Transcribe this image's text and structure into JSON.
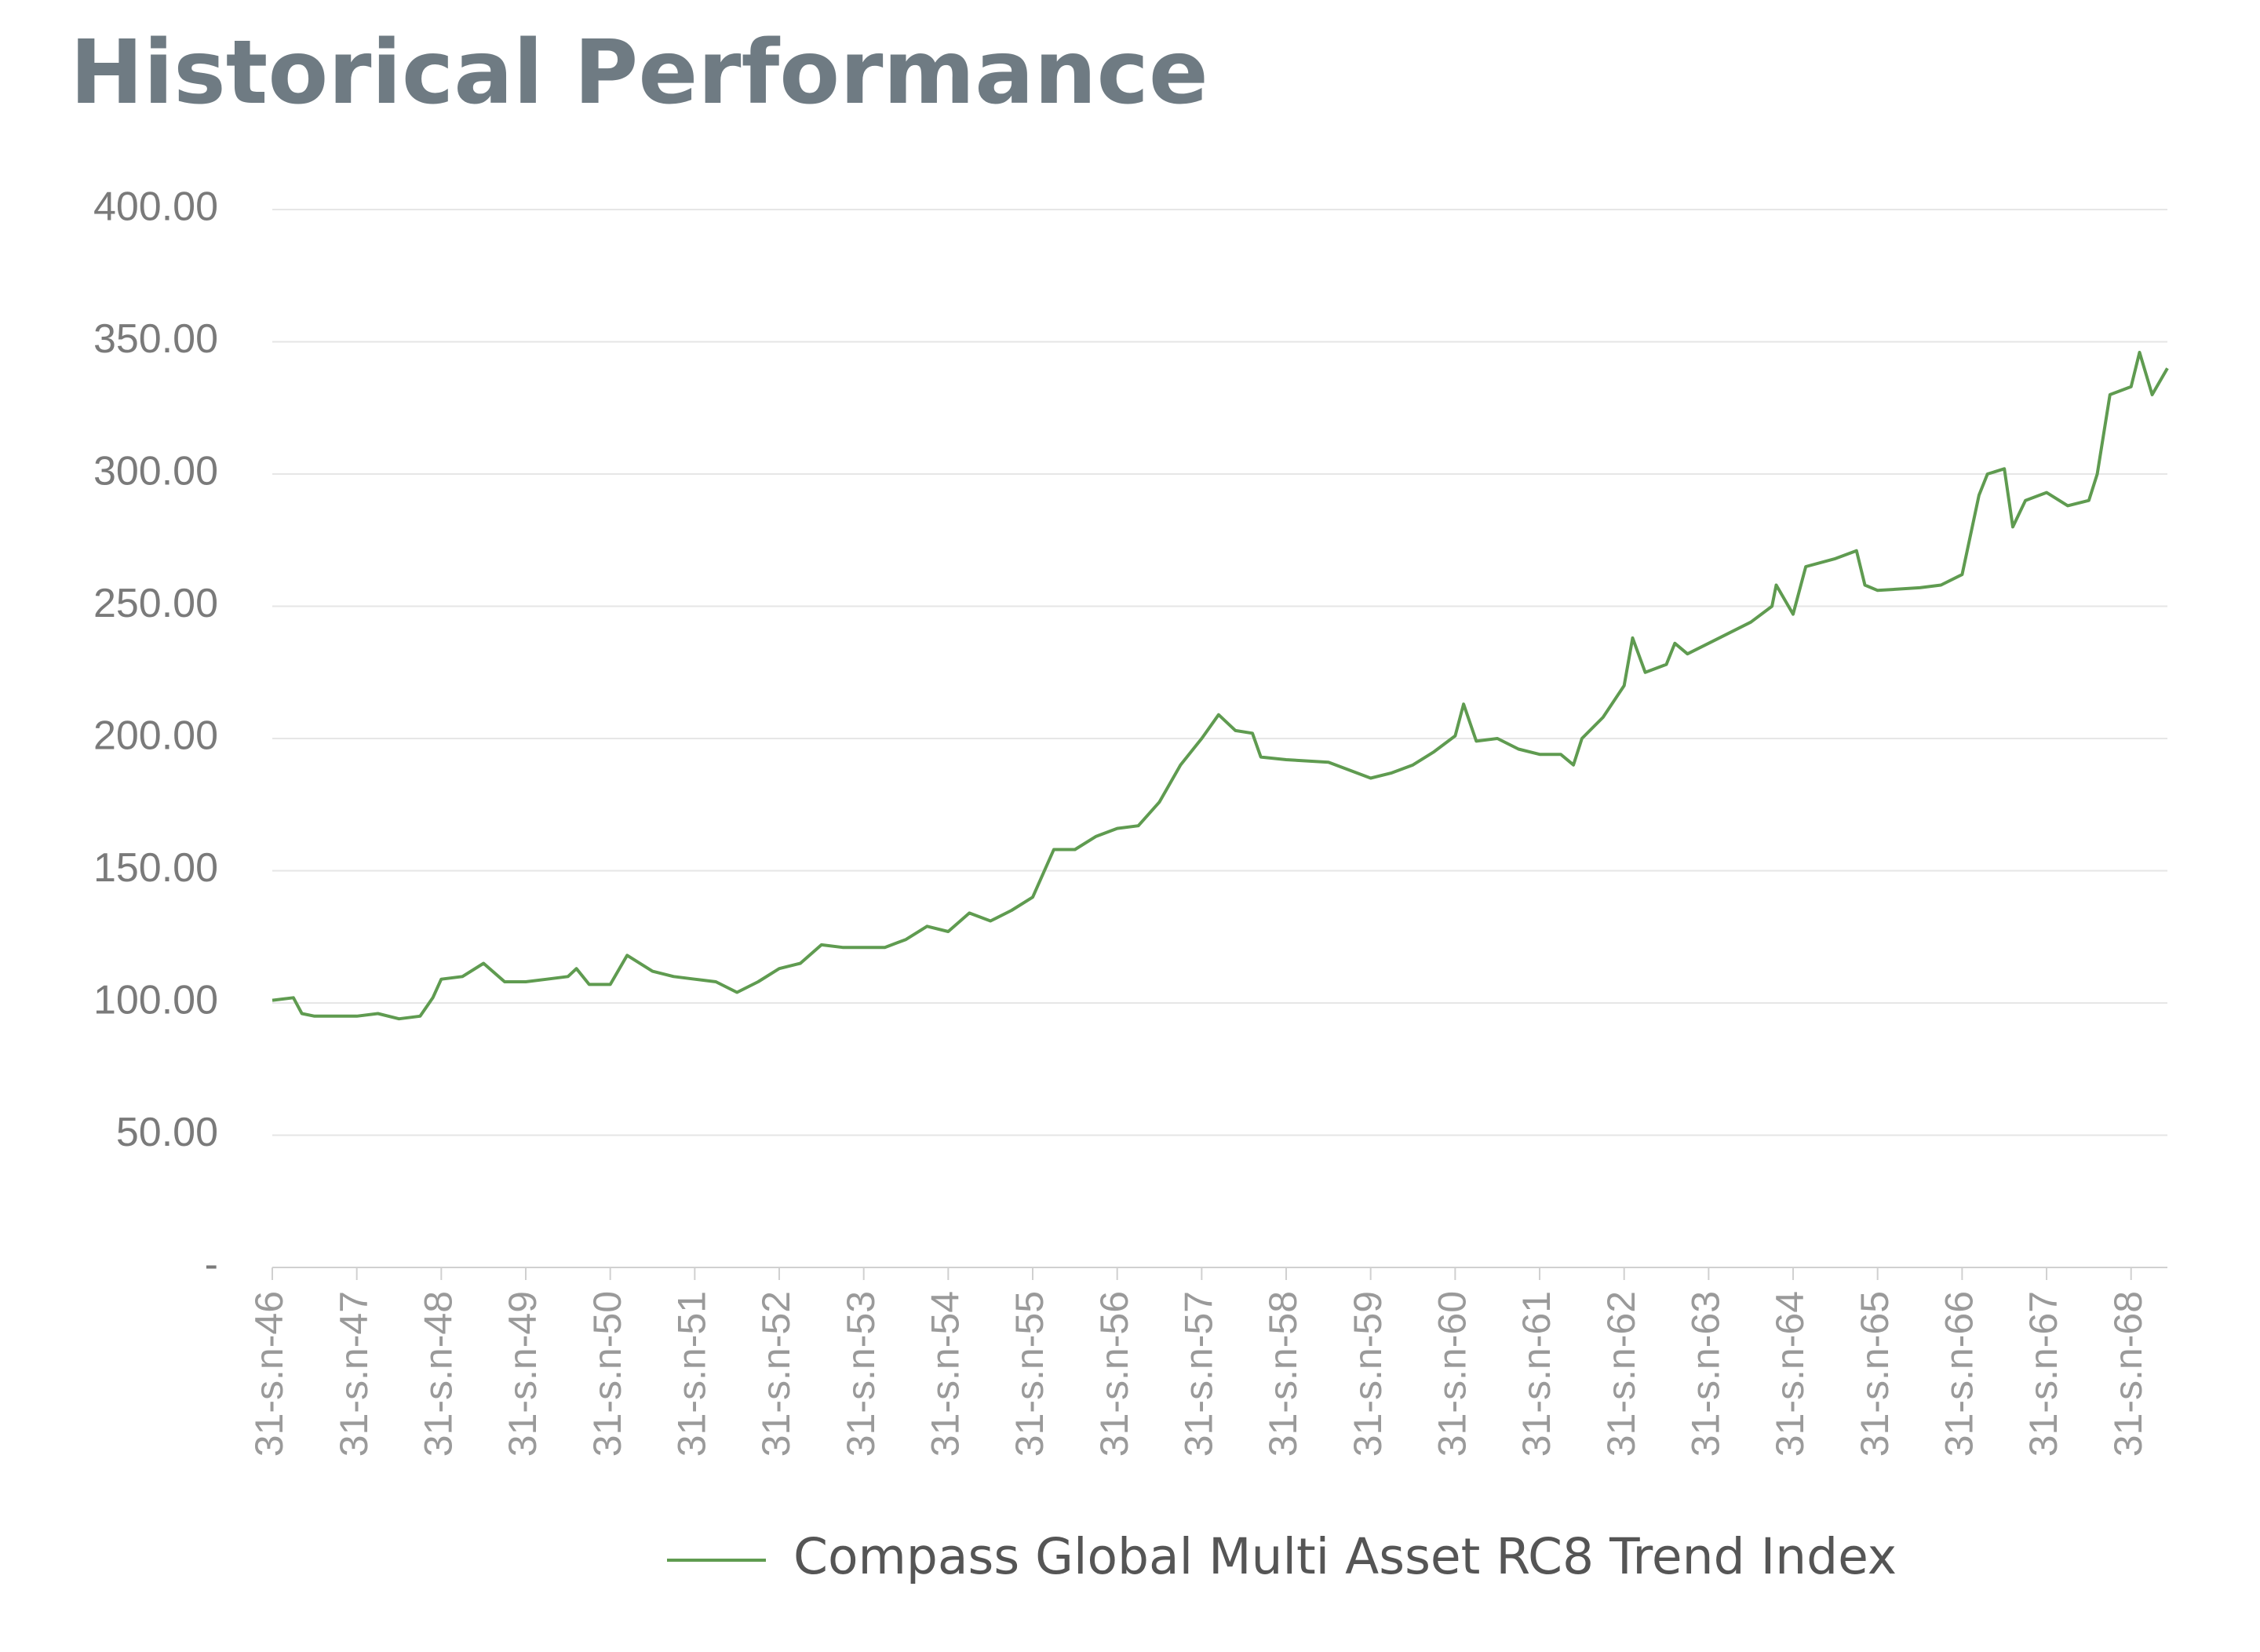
{
  "chart_data": {
    "type": "line",
    "title": "Historical Performance",
    "xticks": [
      {
        "value": 0,
        "label": "31-s.n-46"
      },
      {
        "value": 1,
        "label": "31-s.n-47"
      },
      {
        "value": 2,
        "label": "31-s.n-48"
      },
      {
        "value": 3,
        "label": "31-s.n-49"
      },
      {
        "value": 4,
        "label": "31-s.n-50"
      },
      {
        "value": 5,
        "label": "31-s.n-51"
      },
      {
        "value": 6,
        "label": "31-s.n-52"
      },
      {
        "value": 7,
        "label": "31-s.n-53"
      },
      {
        "value": 8,
        "label": "31-s.n-54"
      },
      {
        "value": 9,
        "label": "31-s.n-55"
      },
      {
        "value": 10,
        "label": "31-s.n-56"
      },
      {
        "value": 11,
        "label": "31-s.n-57"
      },
      {
        "value": 12,
        "label": "31-s.n-58"
      },
      {
        "value": 13,
        "label": "31-s.n-59"
      },
      {
        "value": 14,
        "label": "31-s.n-60"
      },
      {
        "value": 15,
        "label": "31-s.n-61"
      },
      {
        "value": 16,
        "label": "31-s.n-62"
      },
      {
        "value": 17,
        "label": "31-s.n-63"
      },
      {
        "value": 18,
        "label": "31-s.n-64"
      },
      {
        "value": 19,
        "label": "31-s.n-65"
      },
      {
        "value": 20,
        "label": "31-s.n-66"
      },
      {
        "value": 21,
        "label": "31-s.n-67"
      },
      {
        "value": 22,
        "label": "31-s.n-68"
      }
    ],
    "xlim": [
      0,
      22.43
    ],
    "ylim": [
      0,
      400
    ],
    "yticks": [
      {
        "value": 0,
        "label": "-"
      },
      {
        "value": 50,
        "label": "50.00"
      },
      {
        "value": 100,
        "label": "100.00"
      },
      {
        "value": 150,
        "label": "150.00"
      },
      {
        "value": 200,
        "label": "200.00"
      },
      {
        "value": 250,
        "label": "250.00"
      },
      {
        "value": 300,
        "label": "300.00"
      },
      {
        "value": 350,
        "label": "350.00"
      },
      {
        "value": 400,
        "label": "400.00"
      }
    ],
    "grid": true,
    "x": [
      0,
      0.25,
      0.35,
      0.5,
      1.0,
      1.25,
      1.5,
      1.75,
      1.9,
      2.0,
      2.25,
      2.5,
      2.75,
      3.0,
      3.25,
      3.5,
      3.6,
      3.75,
      4.0,
      4.2,
      4.5,
      4.75,
      5.0,
      5.25,
      5.5,
      5.75,
      6.0,
      6.25,
      6.5,
      6.75,
      7.0,
      7.25,
      7.5,
      7.75,
      8.0,
      8.25,
      8.5,
      8.75,
      9.0,
      9.25,
      9.5,
      9.75,
      10.0,
      10.25,
      10.5,
      10.75,
      11.0,
      11.2,
      11.4,
      11.6,
      11.7,
      12.0,
      12.5,
      12.75,
      13.0,
      13.25,
      13.5,
      13.75,
      14.0,
      14.1,
      14.25,
      14.5,
      14.75,
      15.0,
      15.25,
      15.4,
      15.5,
      15.75,
      16.0,
      16.1,
      16.25,
      16.5,
      16.6,
      16.75,
      17.0,
      17.25,
      17.5,
      17.75,
      17.8,
      18.0,
      18.15,
      18.5,
      18.75,
      18.85,
      19.0,
      19.5,
      19.75,
      20.0,
      20.2,
      20.3,
      20.5,
      20.6,
      20.75,
      21.0,
      21.25,
      21.5,
      21.6,
      21.75,
      22.0,
      22.1,
      22.25,
      22.43
    ],
    "series": [
      {
        "name": "Compass Global Multi Asset RC8 Trend Index",
        "color": "#5f9b50",
        "values": [
          101,
          102,
          96,
          95,
          95,
          96,
          94,
          95,
          102,
          109,
          110,
          115,
          108,
          108,
          109,
          110,
          113,
          107,
          107,
          118,
          112,
          110,
          109,
          108,
          104,
          108,
          113,
          115,
          122,
          121,
          121,
          121,
          124,
          129,
          127,
          134,
          131,
          135,
          140,
          158,
          158,
          163,
          166,
          167,
          176,
          190,
          200,
          209,
          203,
          202,
          193,
          192,
          191,
          188,
          185,
          187,
          190,
          195,
          201,
          213,
          199,
          200,
          196,
          194,
          194,
          190,
          200,
          208,
          220,
          238,
          225,
          228,
          236,
          232,
          236,
          240,
          244,
          250,
          258,
          247,
          265,
          268,
          271,
          258,
          256,
          257,
          258,
          262,
          292,
          300,
          302,
          280,
          290,
          293,
          288,
          290,
          300,
          330,
          333,
          346,
          330,
          340
        ]
      }
    ]
  }
}
